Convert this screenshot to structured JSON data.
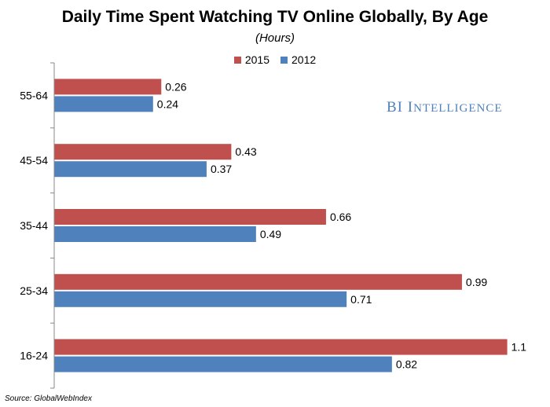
{
  "chart_data": {
    "type": "bar",
    "orientation": "horizontal",
    "title": "Daily Time Spent Watching TV Online Globally, By Age",
    "subtitle": "(Hours)",
    "categories": [
      "55-64",
      "45-54",
      "35-44",
      "25-34",
      "16-24"
    ],
    "series": [
      {
        "name": "2015",
        "color": "#c0504d",
        "values": [
          0.26,
          0.43,
          0.66,
          0.99,
          1.1
        ],
        "labels": [
          "0.26",
          "0.43",
          "0.66",
          "0.99",
          "1.1"
        ]
      },
      {
        "name": "2012",
        "color": "#4f81bd",
        "values": [
          0.24,
          0.37,
          0.49,
          0.71,
          0.82
        ],
        "labels": [
          "0.24",
          "0.37",
          "0.49",
          "0.71",
          "0.82"
        ]
      }
    ],
    "xlim": [
      0,
      1.2
    ],
    "legend_position": "top-center",
    "grid": false
  },
  "watermark": {
    "first": "BI",
    "second_initial": "I",
    "second_rest": "NTELLIGENCE",
    "color": "#4f81bd"
  },
  "source": "Source: GlobalWebIndex"
}
